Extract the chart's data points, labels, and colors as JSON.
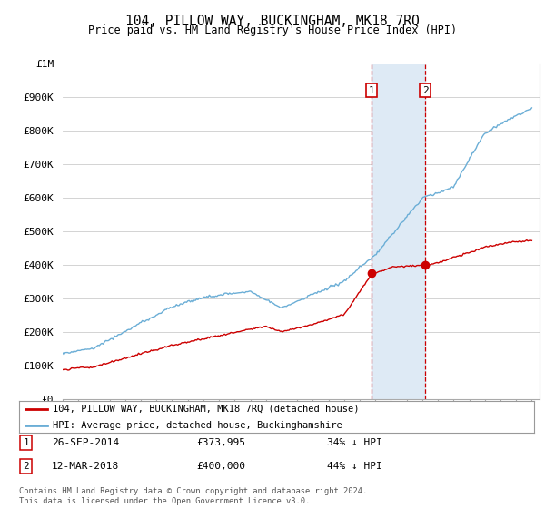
{
  "title": "104, PILLOW WAY, BUCKINGHAM, MK18 7RQ",
  "subtitle": "Price paid vs. HM Land Registry's House Price Index (HPI)",
  "ylim": [
    0,
    1000000
  ],
  "yticks": [
    0,
    100000,
    200000,
    300000,
    400000,
    500000,
    600000,
    700000,
    800000,
    900000,
    1000000
  ],
  "ytick_labels": [
    "£0",
    "£100K",
    "£200K",
    "£300K",
    "£400K",
    "£500K",
    "£600K",
    "£700K",
    "£800K",
    "£900K",
    "£1M"
  ],
  "hpi_color": "#6baed6",
  "price_color": "#cc0000",
  "sale1_price": 373995,
  "sale1_date": "26-SEP-2014",
  "sale1_hpi_pct": "34% ↓ HPI",
  "sale2_price": 400000,
  "sale2_date": "12-MAR-2018",
  "sale2_hpi_pct": "44% ↓ HPI",
  "legend_line1": "104, PILLOW WAY, BUCKINGHAM, MK18 7RQ (detached house)",
  "legend_line2": "HPI: Average price, detached house, Buckinghamshire",
  "footer": "Contains HM Land Registry data © Crown copyright and database right 2024.\nThis data is licensed under the Open Government Licence v3.0.",
  "shade_color": "#deeaf5",
  "vline_color": "#cc0000",
  "background_color": "#ffffff",
  "grid_color": "#cccccc"
}
